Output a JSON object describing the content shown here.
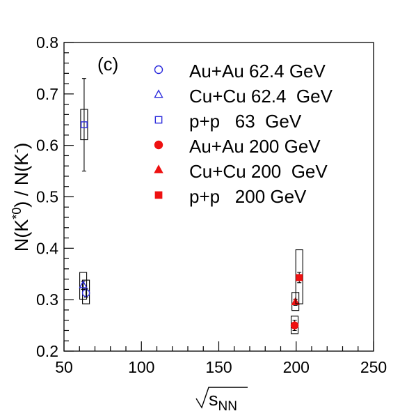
{
  "chart_data": {
    "type": "scatter",
    "panel_label": "(c)",
    "xlabel": "√s_NN",
    "ylabel": "N(K*0) / N(K-)",
    "xlim": [
      50,
      250
    ],
    "ylim": [
      0.2,
      0.8
    ],
    "x_ticks": [
      50,
      100,
      150,
      200,
      250
    ],
    "y_ticks": [
      0.2,
      0.3,
      0.4,
      0.5,
      0.6,
      0.7,
      0.8
    ],
    "grid": false,
    "legend_position": "top-right",
    "series": [
      {
        "name": "Au+Au 62.4 GeV",
        "marker": "open-circle",
        "color": "#2b2bdc",
        "points": [
          {
            "x": 64.2,
            "y": 0.313,
            "stat": 0.008,
            "sys": [
              0.292,
              0.338
            ]
          }
        ]
      },
      {
        "name": "Cu+Cu 62.4  GeV",
        "marker": "open-triangle",
        "color": "#2b2bdc",
        "points": [
          {
            "x": 62.4,
            "y": 0.328,
            "stat": 0.008,
            "sys": [
              0.301,
              0.353
            ]
          }
        ]
      },
      {
        "name": "p+p   63  GeV",
        "marker": "open-square",
        "color": "#2b2bdc",
        "points": [
          {
            "x": 63.0,
            "y": 0.64,
            "stat": 0.09,
            "sys": [
              0.611,
              0.67
            ]
          }
        ]
      },
      {
        "name": "Au+Au 200 GeV",
        "marker": "filled-circle",
        "color": "#ee1111",
        "points": [
          {
            "x": 199.0,
            "y": 0.25,
            "stat": 0.01,
            "sys": [
              0.234,
              0.268
            ]
          }
        ]
      },
      {
        "name": "Cu+Cu 200  GeV",
        "marker": "filled-triangle",
        "color": "#ee1111",
        "points": [
          {
            "x": 199.5,
            "y": 0.295,
            "stat": 0.006,
            "sys": [
              0.279,
              0.314
            ]
          }
        ]
      },
      {
        "name": "p+p   200 GeV",
        "marker": "filled-square",
        "color": "#ee1111",
        "points": [
          {
            "x": 202.0,
            "y": 0.343,
            "stat": 0.01,
            "sys": [
              0.292,
              0.397
            ]
          }
        ]
      }
    ]
  }
}
